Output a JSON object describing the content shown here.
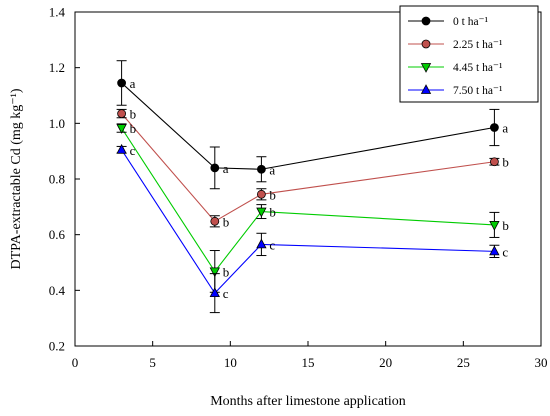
{
  "chart_data": {
    "type": "line",
    "xlabel": "Months after limestone application",
    "ylabel": "DTPA-extractable Cd (mg kg⁻¹)",
    "xlim": [
      0,
      30
    ],
    "ylim": [
      0.2,
      1.4
    ],
    "xticks": [
      0,
      5,
      10,
      15,
      20,
      25,
      30
    ],
    "yticks": [
      0.2,
      0.4,
      0.6,
      0.8,
      1.0,
      1.2,
      1.4
    ],
    "ytick_labels": [
      "0.2",
      "0.4",
      "0.6",
      "0.8",
      "1.0",
      "1.2",
      "1.4"
    ],
    "x": [
      3,
      9,
      12,
      27
    ],
    "grid": false,
    "legend_position": "top-right",
    "series": [
      {
        "name": "0 t ha⁻¹",
        "values": [
          1.145,
          0.84,
          0.835,
          0.985
        ],
        "errors": [
          0.08,
          0.075,
          0.045,
          0.065
        ],
        "letters": [
          "a",
          "a",
          "a",
          "a"
        ],
        "marker": "circle",
        "line_color": "#000000",
        "fill_color": "#000000"
      },
      {
        "name": "2.25 t ha⁻¹",
        "values": [
          1.035,
          0.648,
          0.745,
          0.862
        ],
        "errors": [
          0.015,
          0.02,
          0.02,
          0.012
        ],
        "letters": [
          "b",
          "b",
          "b",
          "b"
        ],
        "marker": "circle",
        "line_color": "#c0504d",
        "fill_color": "#c0504d"
      },
      {
        "name": "4.45 t ha⁻¹",
        "values": [
          0.983,
          0.468,
          0.683,
          0.635
        ],
        "errors": [
          0.015,
          0.075,
          0.025,
          0.045
        ],
        "letters": [
          "b",
          "b",
          "b",
          "b"
        ],
        "marker": "triangle-down",
        "line_color": "#00cc00",
        "fill_color": "#00cc00"
      },
      {
        "name": "7.50 t ha⁻¹",
        "values": [
          0.905,
          0.39,
          0.565,
          0.54
        ],
        "errors": [
          0.012,
          0.07,
          0.04,
          0.022
        ],
        "letters": [
          "c",
          "c",
          "c",
          "c"
        ],
        "marker": "triangle-up",
        "line_color": "#0000ff",
        "fill_color": "#0000ff"
      }
    ]
  }
}
